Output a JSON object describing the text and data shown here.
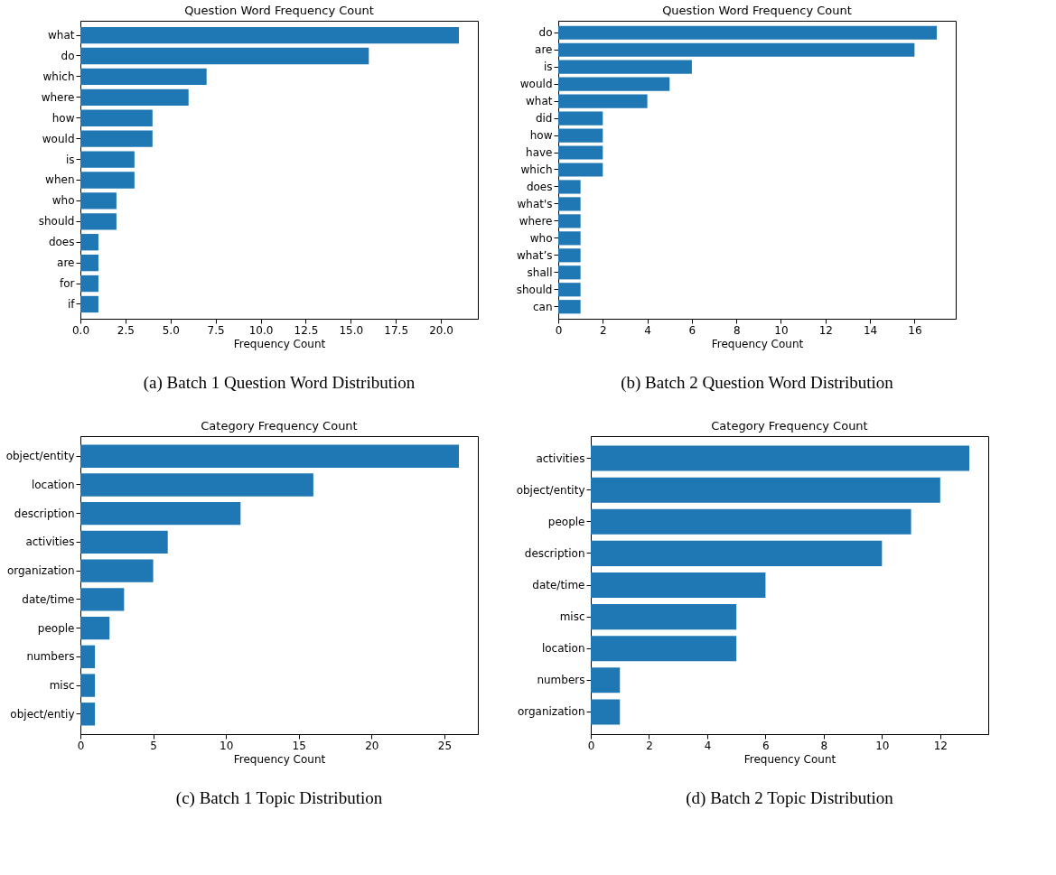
{
  "chart_data": [
    {
      "type": "bar",
      "orientation": "horizontal",
      "title": "Question Word Frequency Count",
      "xlabel": "Frequency Count",
      "categories": [
        "what",
        "do",
        "which",
        "where",
        "how",
        "would",
        "is",
        "when",
        "who",
        "should",
        "does",
        "are",
        "for",
        "if"
      ],
      "values": [
        21,
        16,
        7,
        6,
        4,
        4,
        3,
        3,
        2,
        2,
        1,
        1,
        1,
        1
      ],
      "color": "#1f77b4",
      "xlim": [
        0,
        22.05
      ],
      "xticks": [
        {
          "value": 0,
          "label": "0.0"
        },
        {
          "value": 2.5,
          "label": "2.5"
        },
        {
          "value": 5,
          "label": "5.0"
        },
        {
          "value": 7.5,
          "label": "7.5"
        },
        {
          "value": 10,
          "label": "10.0"
        },
        {
          "value": 12.5,
          "label": "12.5"
        },
        {
          "value": 15,
          "label": "15.0"
        },
        {
          "value": 17.5,
          "label": "17.5"
        },
        {
          "value": 20,
          "label": "20.0"
        }
      ],
      "annotations": [
        "(a) Batch 1 Question Word Distribution"
      ]
    },
    {
      "type": "bar",
      "orientation": "horizontal",
      "title": "Question Word Frequency Count",
      "xlabel": "Frequency Count",
      "categories": [
        "do",
        "are",
        "is",
        "would",
        "what",
        "did",
        "how",
        "have",
        "which",
        "does",
        "what's",
        "where",
        "who",
        "what’s",
        "shall",
        "should",
        "can"
      ],
      "values": [
        17,
        16,
        6,
        5,
        4,
        2,
        2,
        2,
        2,
        1,
        1,
        1,
        1,
        1,
        1,
        1,
        1
      ],
      "color": "#1f77b4",
      "xlim": [
        0,
        17.85
      ],
      "xticks": [
        0,
        2,
        4,
        6,
        8,
        10,
        12,
        14,
        16
      ],
      "annotations": [
        "(b) Batch 2 Question Word Distribution"
      ]
    },
    {
      "type": "bar",
      "orientation": "horizontal",
      "title": "Category Frequency Count",
      "xlabel": "Frequency Count",
      "categories": [
        "object/entity",
        "location",
        "description",
        "activities",
        "organization",
        "date/time",
        "people",
        "numbers",
        "misc",
        "object/entiy"
      ],
      "values": [
        26,
        16,
        11,
        6,
        5,
        3,
        2,
        1,
        1,
        1
      ],
      "color": "#1f77b4",
      "xlim": [
        0,
        27.3
      ],
      "xticks": [
        0,
        5,
        10,
        15,
        20,
        25
      ],
      "annotations": [
        "(c) Batch 1 Topic Distribution"
      ]
    },
    {
      "type": "bar",
      "orientation": "horizontal",
      "title": "Category Frequency Count",
      "xlabel": "Frequency Count",
      "categories": [
        "activities",
        "object/entity",
        "people",
        "description",
        "date/time",
        "misc",
        "location",
        "numbers",
        "organization"
      ],
      "values": [
        13,
        12,
        11,
        10,
        6,
        5,
        5,
        1,
        1
      ],
      "color": "#1f77b4",
      "xlim": [
        0,
        13.65
      ],
      "xticks": [
        0,
        2,
        4,
        6,
        8,
        10,
        12
      ],
      "annotations": [
        "(d) Batch 2 Topic Distribution"
      ]
    }
  ]
}
